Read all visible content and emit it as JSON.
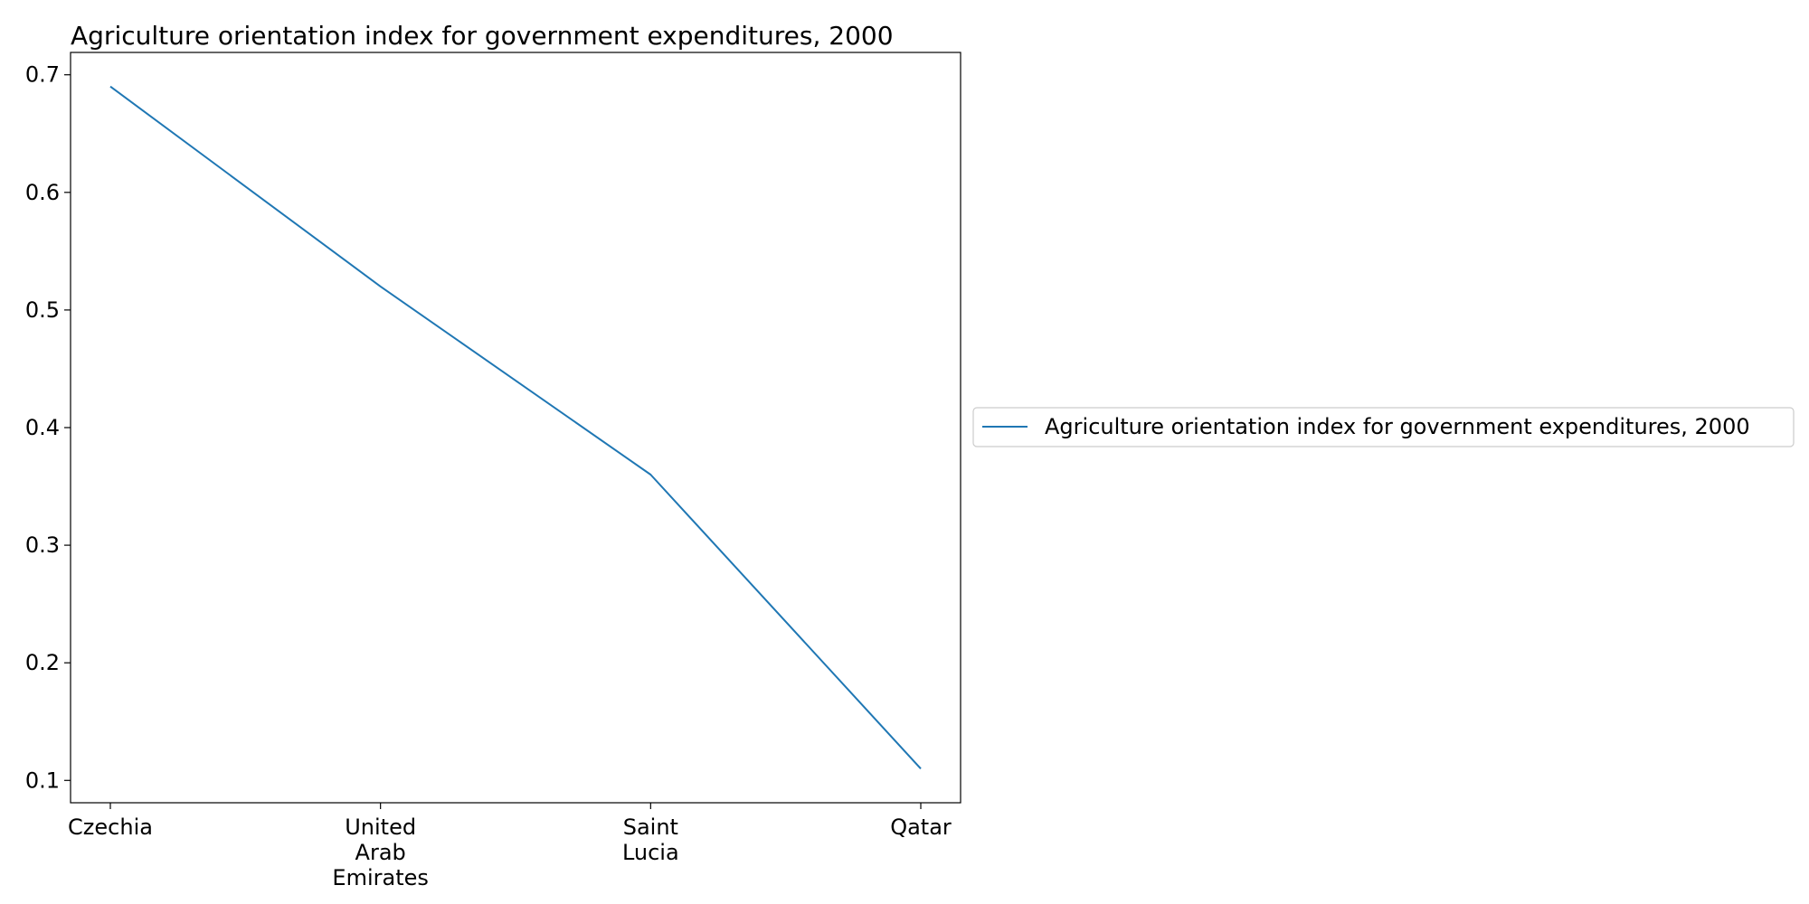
{
  "chart_data": {
    "type": "line",
    "title": "Agriculture orientation index for government expenditures, 2000",
    "xlabel": "",
    "ylabel": "",
    "categories": [
      [
        "Czechia"
      ],
      [
        "United",
        "Arab",
        "Emirates"
      ],
      [
        "Saint",
        "Lucia"
      ],
      [
        "Qatar"
      ]
    ],
    "series": [
      {
        "name": "Agriculture orientation index for government expenditures, 2000",
        "values": [
          0.69,
          0.52,
          0.36,
          0.11
        ],
        "color": "#1f77b4"
      }
    ],
    "ylim": [
      0.081,
      0.719
    ],
    "yticks": [
      0.1,
      0.2,
      0.3,
      0.4,
      0.5,
      0.6,
      0.7
    ],
    "grid": false,
    "legend_position": "right"
  }
}
